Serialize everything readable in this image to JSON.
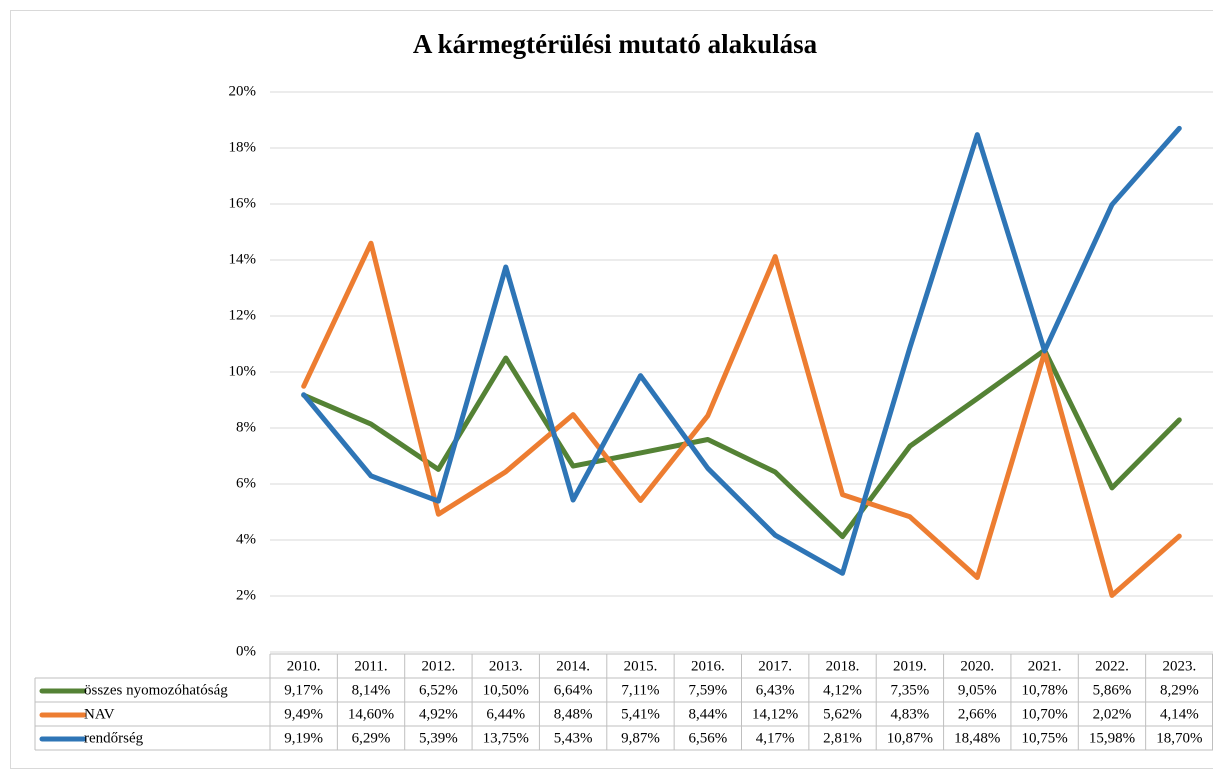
{
  "chart_data": {
    "type": "line",
    "title": "A kármegtérülési mutató alakulása",
    "categories": [
      "2010.",
      "2011.",
      "2012.",
      "2013.",
      "2014.",
      "2015.",
      "2016.",
      "2017.",
      "2018.",
      "2019.",
      "2020.",
      "2021.",
      "2022.",
      "2023."
    ],
    "series": [
      {
        "name": "összes nyomozóhatóság",
        "color": "#548235",
        "values": [
          9.17,
          8.14,
          6.52,
          10.5,
          6.64,
          7.11,
          7.59,
          6.43,
          4.12,
          7.35,
          9.05,
          10.78,
          5.86,
          8.29
        ],
        "value_labels": [
          "9,17%",
          "8,14%",
          "6,52%",
          "10,50%",
          "6,64%",
          "7,11%",
          "7,59%",
          "6,43%",
          "4,12%",
          "7,35%",
          "9,05%",
          "10,78%",
          "5,86%",
          "8,29%"
        ]
      },
      {
        "name": "NAV",
        "color": "#ed7d31",
        "values": [
          9.49,
          14.6,
          4.92,
          6.44,
          8.48,
          5.41,
          8.44,
          14.12,
          5.62,
          4.83,
          2.66,
          10.7,
          2.02,
          4.14
        ],
        "value_labels": [
          "9,49%",
          "14,60%",
          "4,92%",
          "6,44%",
          "8,48%",
          "5,41%",
          "8,44%",
          "14,12%",
          "5,62%",
          "4,83%",
          "2,66%",
          "10,70%",
          "2,02%",
          "4,14%"
        ]
      },
      {
        "name": "rendőrség",
        "color": "#2e75b6",
        "values": [
          9.19,
          6.29,
          5.39,
          13.75,
          5.43,
          9.87,
          6.56,
          4.17,
          2.81,
          10.87,
          18.48,
          10.75,
          15.98,
          18.7
        ],
        "value_labels": [
          "9,19%",
          "6,29%",
          "5,39%",
          "13,75%",
          "5,43%",
          "9,87%",
          "6,56%",
          "4,17%",
          "2,81%",
          "10,87%",
          "18,48%",
          "10,75%",
          "15,98%",
          "18,70%"
        ]
      }
    ],
    "ylim": [
      0,
      20
    ],
    "yticks": [
      {
        "value": 0,
        "label": "0%"
      },
      {
        "value": 2,
        "label": "2%"
      },
      {
        "value": 4,
        "label": "4%"
      },
      {
        "value": 6,
        "label": "6%"
      },
      {
        "value": 8,
        "label": "8%"
      },
      {
        "value": 10,
        "label": "10%"
      },
      {
        "value": 12,
        "label": "12%"
      },
      {
        "value": 14,
        "label": "14%"
      },
      {
        "value": 16,
        "label": "16%"
      },
      {
        "value": 18,
        "label": "18%"
      },
      {
        "value": 20,
        "label": "20%"
      }
    ],
    "grid": true
  }
}
